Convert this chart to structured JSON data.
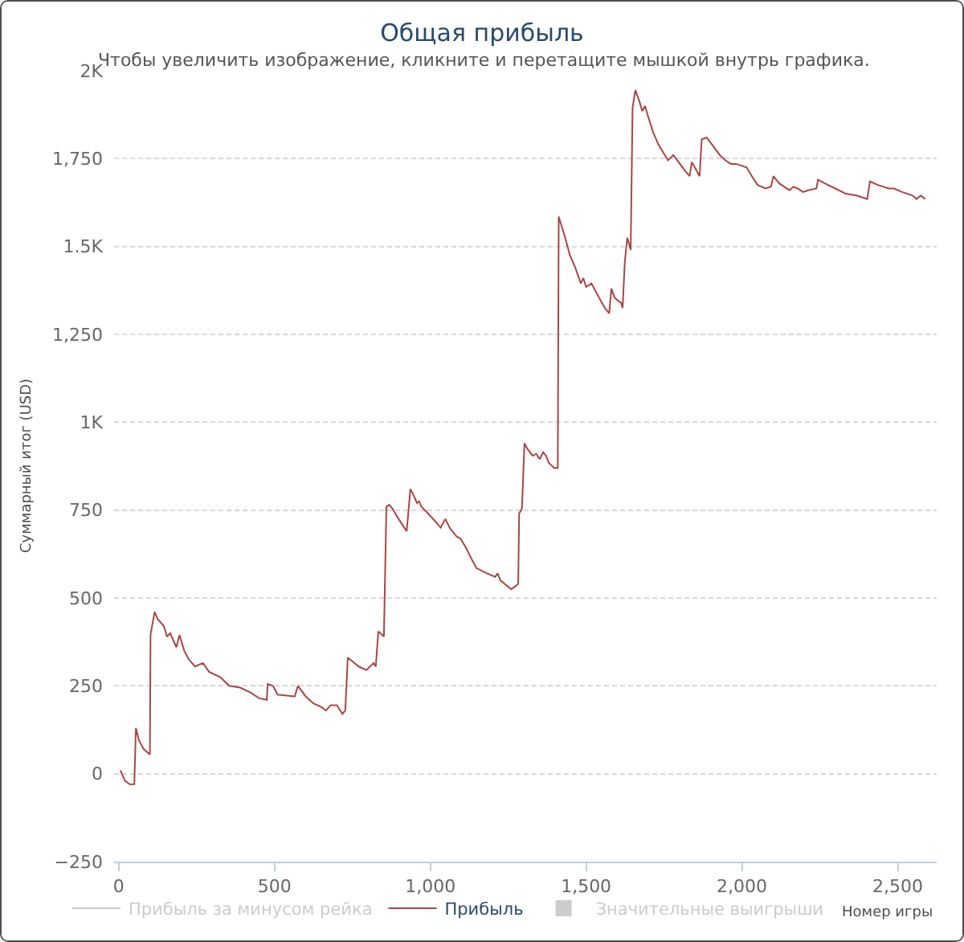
{
  "chart_data": {
    "type": "line",
    "title": "Общая прибыль",
    "subtitle": "Чтобы увеличить изображение, кликните и перетащите мышкой внутрь графика.",
    "xlabel": "Номер игры",
    "ylabel": "Суммарный итог (USD)",
    "xlim": [
      -15,
      2625
    ],
    "xticks": [
      0,
      500,
      {
        "value": 1000,
        "label": "1,000"
      },
      {
        "value": 1500,
        "label": "1,500"
      },
      {
        "value": 2000,
        "label": "2,000"
      },
      {
        "value": 2500,
        "label": "2,500"
      }
    ],
    "ylim": [
      -250,
      2000
    ],
    "yticks": [
      {
        "value": -250,
        "label": "−250"
      },
      0,
      250,
      500,
      750,
      {
        "value": 1000,
        "label": "1K"
      },
      {
        "value": 1250,
        "label": "1,250"
      },
      {
        "value": 1500,
        "label": "1.5K"
      },
      {
        "value": 1750,
        "label": "1,750"
      },
      {
        "value": 2000,
        "label": "2K"
      }
    ],
    "grid": "y",
    "legend": "bottom",
    "series": [
      {
        "name": "Прибыль за минусом рейка",
        "color": "#cccccc"
      },
      {
        "name": "Прибыль",
        "color": "#aa4643",
        "x": [
          5,
          20,
          35,
          50,
          55,
          65,
          80,
          100,
          102,
          115,
          125,
          145,
          155,
          165,
          185,
          195,
          210,
          225,
          245,
          270,
          290,
          325,
          355,
          390,
          425,
          450,
          475,
          478,
          495,
          510,
          565,
          575,
          600,
          625,
          650,
          665,
          680,
          700,
          718,
          727,
          735,
          750,
          770,
          795,
          818,
          825,
          833,
          851,
          859,
          868,
          878,
          898,
          924,
          936,
          950,
          957,
          964,
          971,
          993,
          1019,
          1033,
          1048,
          1062,
          1084,
          1096,
          1113,
          1130,
          1148,
          1182,
          1208,
          1216,
          1225,
          1259,
          1268,
          1282,
          1285,
          1294,
          1302,
          1311,
          1328,
          1340,
          1351,
          1362,
          1371,
          1380,
          1397,
          1409,
          1412,
          1431,
          1448,
          1465,
          1483,
          1491,
          1500,
          1517,
          1535,
          1560,
          1574,
          1581,
          1591,
          1603,
          1612,
          1617,
          1624,
          1632,
          1643,
          1649,
          1658,
          1672,
          1680,
          1689,
          1697,
          1715,
          1732,
          1749,
          1763,
          1780,
          1801,
          1818,
          1832,
          1839,
          1852,
          1864,
          1871,
          1887,
          1904,
          1929,
          1947,
          1964,
          1981,
          2015,
          2032,
          2050,
          2076,
          2093,
          2101,
          2119,
          2136,
          2153,
          2165,
          2179,
          2196,
          2213,
          2239,
          2244,
          2265,
          2299,
          2334,
          2368,
          2402,
          2411,
          2436,
          2471,
          2488,
          2514,
          2548,
          2560,
          2574,
          2588
        ],
        "values": [
          10,
          -20,
          -30,
          -30,
          130,
          95,
          70,
          55,
          395,
          460,
          440,
          420,
          390,
          400,
          360,
          395,
          350,
          325,
          305,
          315,
          290,
          275,
          250,
          245,
          230,
          215,
          210,
          255,
          250,
          225,
          220,
          250,
          220,
          200,
          190,
          180,
          195,
          195,
          170,
          180,
          330,
          320,
          305,
          295,
          315,
          305,
          405,
          390,
          760,
          765,
          755,
          725,
          690,
          810,
          785,
          770,
          775,
          760,
          740,
          715,
          700,
          725,
          700,
          675,
          670,
          645,
          615,
          585,
          570,
          560,
          570,
          550,
          525,
          530,
          540,
          740,
          755,
          940,
          925,
          905,
          910,
          895,
          915,
          905,
          885,
          870,
          870,
          1585,
          1530,
          1475,
          1440,
          1395,
          1410,
          1385,
          1395,
          1365,
          1325,
          1310,
          1380,
          1355,
          1345,
          1340,
          1325,
          1455,
          1525,
          1490,
          1895,
          1945,
          1910,
          1885,
          1900,
          1875,
          1825,
          1790,
          1765,
          1745,
          1760,
          1735,
          1715,
          1700,
          1740,
          1720,
          1700,
          1805,
          1810,
          1790,
          1760,
          1745,
          1735,
          1735,
          1725,
          1700,
          1675,
          1665,
          1670,
          1700,
          1680,
          1670,
          1660,
          1670,
          1665,
          1655,
          1660,
          1665,
          1690,
          1680,
          1665,
          1650,
          1645,
          1635,
          1685,
          1675,
          1665,
          1665,
          1655,
          1645,
          1635,
          1645,
          1635
        ]
      },
      {
        "name": "Значительные выигрыши",
        "type": "scatter",
        "marker": "square",
        "color": "#cccccc"
      }
    ]
  }
}
